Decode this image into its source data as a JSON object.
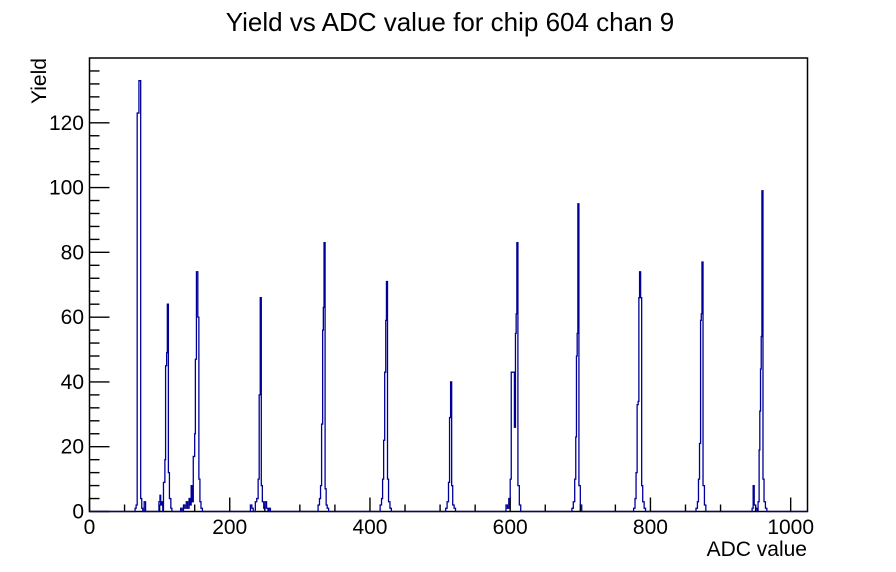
{
  "chart_data": {
    "type": "line",
    "subtype": "histogram-step-outline",
    "title": "Yield vs ADC value for chip 604 chan 9",
    "xlabel": "ADC value",
    "ylabel": "Yield",
    "xlim": [
      0,
      1024
    ],
    "ylim": [
      0,
      140
    ],
    "x_major_ticks": [
      0,
      200,
      400,
      600,
      800,
      1000
    ],
    "x_minor_step": 50,
    "y_major_ticks": [
      0,
      20,
      40,
      60,
      80,
      100,
      120
    ],
    "y_minor_step": 4,
    "grid": false,
    "legend": "none",
    "line_color": "#000099",
    "frame_color": "#000000",
    "background_color": "#ffffff",
    "peaks": [
      {
        "adc": 70,
        "yield": 133
      },
      {
        "adc": 111,
        "yield": 64
      },
      {
        "adc": 153,
        "yield": 74
      },
      {
        "adc": 244,
        "yield": 66
      },
      {
        "adc": 334,
        "yield": 83
      },
      {
        "adc": 424,
        "yield": 71
      },
      {
        "adc": 515,
        "yield": 40
      },
      {
        "adc": 610,
        "yield": 83
      },
      {
        "adc": 697,
        "yield": 95
      },
      {
        "adc": 785,
        "yield": 74
      },
      {
        "adc": 874,
        "yield": 77
      },
      {
        "adc": 959,
        "yield": 99
      }
    ],
    "steps": [
      [
        0,
        0
      ],
      [
        65,
        1
      ],
      [
        66.5,
        2
      ],
      [
        68,
        123
      ],
      [
        70.5,
        133
      ],
      [
        73,
        4
      ],
      [
        74.5,
        1
      ],
      [
        76,
        0
      ],
      [
        78,
        3
      ],
      [
        80,
        0
      ],
      [
        99,
        3
      ],
      [
        100.5,
        5
      ],
      [
        101.5,
        2
      ],
      [
        103,
        3
      ],
      [
        104.5,
        0
      ],
      [
        105.5,
        9
      ],
      [
        107.5,
        16
      ],
      [
        108.5,
        45
      ],
      [
        110,
        49
      ],
      [
        111,
        64
      ],
      [
        112.5,
        12
      ],
      [
        114,
        4
      ],
      [
        116,
        1
      ],
      [
        117.5,
        0
      ],
      [
        130,
        1
      ],
      [
        132,
        0
      ],
      [
        134,
        2
      ],
      [
        136,
        1
      ],
      [
        138,
        3
      ],
      [
        140,
        1
      ],
      [
        142,
        4
      ],
      [
        143.5,
        2
      ],
      [
        145,
        8
      ],
      [
        146.5,
        3
      ],
      [
        148,
        17
      ],
      [
        150,
        24
      ],
      [
        151,
        47
      ],
      [
        152.5,
        74
      ],
      [
        154.5,
        60
      ],
      [
        156,
        10
      ],
      [
        157.5,
        3
      ],
      [
        159,
        1
      ],
      [
        161,
        0
      ],
      [
        229.5,
        2
      ],
      [
        231.5,
        1
      ],
      [
        233.5,
        0
      ],
      [
        236.5,
        3
      ],
      [
        238.5,
        4
      ],
      [
        240.5,
        10
      ],
      [
        242,
        36
      ],
      [
        243.5,
        66
      ],
      [
        245,
        8
      ],
      [
        246.5,
        3
      ],
      [
        248.5,
        1
      ],
      [
        250.5,
        3
      ],
      [
        252.5,
        1
      ],
      [
        254.5,
        0
      ],
      [
        256,
        1
      ],
      [
        258,
        0
      ],
      [
        326,
        2
      ],
      [
        328,
        4
      ],
      [
        329.5,
        8
      ],
      [
        331,
        27
      ],
      [
        332.5,
        56
      ],
      [
        333.5,
        63
      ],
      [
        334.5,
        83
      ],
      [
        336,
        7
      ],
      [
        337.5,
        2
      ],
      [
        339,
        1
      ],
      [
        341,
        0
      ],
      [
        414.5,
        2
      ],
      [
        416.5,
        4
      ],
      [
        418,
        10
      ],
      [
        419.5,
        22
      ],
      [
        421,
        43
      ],
      [
        422.5,
        59
      ],
      [
        423.5,
        71
      ],
      [
        425,
        10
      ],
      [
        426.5,
        3
      ],
      [
        428.5,
        1
      ],
      [
        430.5,
        0
      ],
      [
        508,
        1
      ],
      [
        510,
        3
      ],
      [
        512,
        9
      ],
      [
        513.5,
        29
      ],
      [
        515,
        40
      ],
      [
        516.5,
        8
      ],
      [
        518,
        2
      ],
      [
        520,
        1
      ],
      [
        522,
        0
      ],
      [
        594,
        2
      ],
      [
        596,
        1
      ],
      [
        598,
        4
      ],
      [
        600,
        10
      ],
      [
        601.5,
        43
      ],
      [
        604.5,
        43
      ],
      [
        606,
        26
      ],
      [
        607.5,
        55
      ],
      [
        608.5,
        61
      ],
      [
        609.5,
        83
      ],
      [
        611,
        8
      ],
      [
        613,
        2
      ],
      [
        615,
        0
      ],
      [
        688,
        1
      ],
      [
        690,
        3
      ],
      [
        692,
        10
      ],
      [
        693.5,
        23
      ],
      [
        694.5,
        48
      ],
      [
        695.5,
        55
      ],
      [
        696.5,
        95
      ],
      [
        698,
        8
      ],
      [
        700,
        2
      ],
      [
        702,
        0
      ],
      [
        776,
        1
      ],
      [
        778,
        4
      ],
      [
        779.5,
        12
      ],
      [
        781,
        33
      ],
      [
        782.5,
        34
      ],
      [
        783.5,
        66
      ],
      [
        784.5,
        74
      ],
      [
        786,
        66
      ],
      [
        787.5,
        8
      ],
      [
        789,
        3
      ],
      [
        791,
        1
      ],
      [
        793,
        0
      ],
      [
        865,
        1
      ],
      [
        867,
        3
      ],
      [
        868.5,
        10
      ],
      [
        870,
        21
      ],
      [
        871.5,
        59
      ],
      [
        872.5,
        61
      ],
      [
        873.5,
        77
      ],
      [
        875,
        8
      ],
      [
        877,
        2
      ],
      [
        879,
        0
      ],
      [
        945,
        1
      ],
      [
        946.5,
        8
      ],
      [
        948,
        2
      ],
      [
        950,
        1
      ],
      [
        952,
        0
      ],
      [
        953.5,
        3
      ],
      [
        955,
        19
      ],
      [
        956,
        31
      ],
      [
        957,
        44
      ],
      [
        958,
        54
      ],
      [
        959,
        99
      ],
      [
        960.5,
        10
      ],
      [
        962,
        3
      ],
      [
        964,
        1
      ],
      [
        966,
        0
      ],
      [
        1024,
        0
      ]
    ]
  }
}
